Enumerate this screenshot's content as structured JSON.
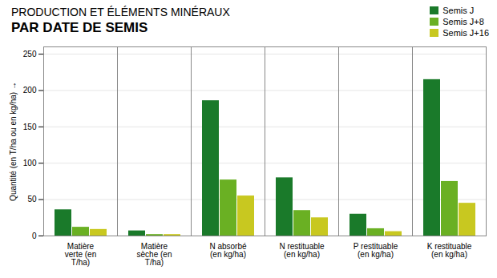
{
  "chart_data": {
    "type": "bar",
    "title": "PRODUCTION ET ÉLÉMENTS MINÉRAUX",
    "subtitle": "PAR DATE DE SEMIS",
    "categories": [
      "Matière\nverte (en\nT/ha)",
      "Matière\nsèche (en\nT/ha)",
      "N absorbé\n(en kg/ha)",
      "N restituable\n(en kg/ha)",
      "P restituable\n(en kg/ha)",
      "K restituable\n(en kg/ha)"
    ],
    "series": [
      {
        "name": "Semis J",
        "color": "#1a7a2a",
        "values": [
          36,
          7,
          186,
          80,
          30,
          215
        ]
      },
      {
        "name": "Semis J+8",
        "color": "#6ab023",
        "values": [
          12,
          2,
          77,
          35,
          10,
          75
        ]
      },
      {
        "name": "Semis J+16",
        "color": "#c8c820",
        "values": [
          9,
          2,
          55,
          25,
          6,
          45
        ]
      }
    ],
    "ylabel": "Quantité (en T/ha ou en kg/ha)",
    "ylim": [
      0,
      260
    ],
    "yticks": [
      0,
      50,
      100,
      150,
      200,
      250
    ],
    "grid": true,
    "legend": "upper right"
  }
}
